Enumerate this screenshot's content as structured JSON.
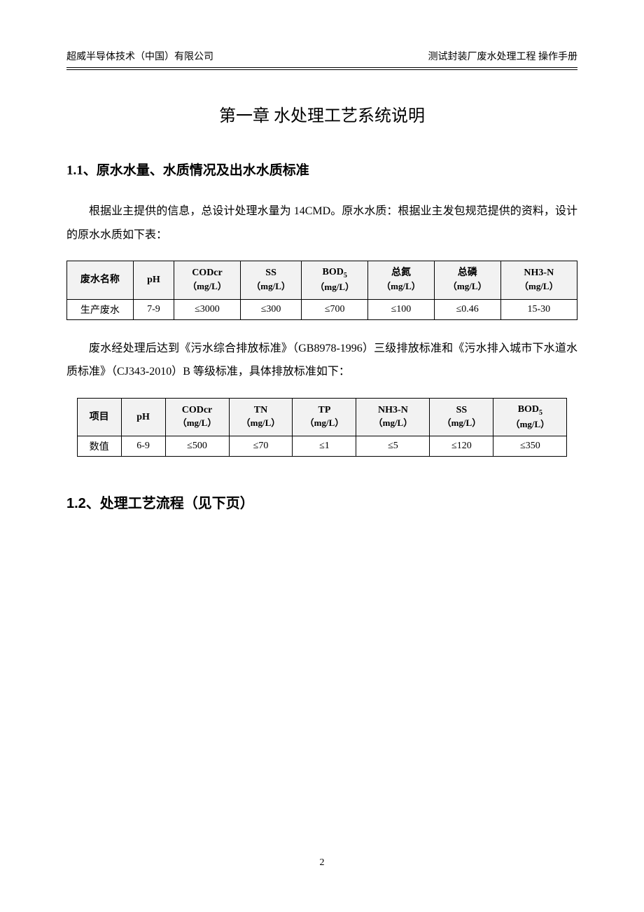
{
  "header": {
    "left": "超威半导体技术（中国）有限公司",
    "right": "测试封装厂废水处理工程 操作手册"
  },
  "chapter_title": "第一章 水处理工艺系统说明",
  "section_11": {
    "number": "1.1",
    "title": "、原水水量、水质情况及出水水质标准"
  },
  "paragraph_1": "根据业主提供的信息，总设计处理水量为 14CMD。原水水质：根据业主发包规范提供的资料，设计的原水水质如下表：",
  "table1": {
    "headers": [
      {
        "main": "废水名称",
        "unit": ""
      },
      {
        "main": "pH",
        "unit": ""
      },
      {
        "main": "CODcr",
        "unit": "（mg/L）"
      },
      {
        "main": "SS",
        "unit": "（mg/L）"
      },
      {
        "main": "BOD",
        "sub": "5",
        "unit": "（mg/L）"
      },
      {
        "main": "总氮",
        "unit": "（mg/L）"
      },
      {
        "main": "总磷",
        "unit": "（mg/L）"
      },
      {
        "main": "NH3-N",
        "unit": "（mg/L）"
      }
    ],
    "row": [
      "生产废水",
      "7-9",
      "≤3000",
      "≤300",
      "≤700",
      "≤100",
      "≤0.46",
      "15-30"
    ],
    "col_widths": [
      "13%",
      "8%",
      "13%",
      "12%",
      "13%",
      "13%",
      "13%",
      "15%"
    ],
    "header_bg": "#f2f2f2"
  },
  "paragraph_2": "废水经处理后达到《污水综合排放标准》（GB8978-1996）三级排放标准和《污水排入城市下水道水质标准》（CJ343-2010）B 等级标准，具体排放标准如下：",
  "table2": {
    "headers": [
      {
        "main": "项目",
        "unit": ""
      },
      {
        "main": "pH",
        "unit": ""
      },
      {
        "main": "CODcr",
        "unit": "（mg/L）"
      },
      {
        "main": "TN",
        "unit": "（mg/L）"
      },
      {
        "main": "TP",
        "unit": "（mg/L）"
      },
      {
        "main": "NH3-N",
        "unit": "（mg/L）"
      },
      {
        "main": "SS",
        "unit": "（mg/L）"
      },
      {
        "main": "BOD",
        "sub": "5",
        "unit": "（mg/L）"
      }
    ],
    "row": [
      "数值",
      "6-9",
      "≤500",
      "≤70",
      "≤1",
      "≤5",
      "≤120",
      "≤350"
    ],
    "col_widths": [
      "9%",
      "9%",
      "13%",
      "13%",
      "13%",
      "15%",
      "13%",
      "15%"
    ],
    "header_bg": "#f2f2f2"
  },
  "section_12": {
    "number": "1.2",
    "title": "、处理工艺流程（见下页）"
  },
  "page_number": "2",
  "colors": {
    "text": "#000000",
    "background": "#ffffff",
    "border": "#000000",
    "table_header_bg": "#f2f2f2"
  },
  "fonts": {
    "body": "SimSun",
    "numbers": "Times New Roman"
  }
}
